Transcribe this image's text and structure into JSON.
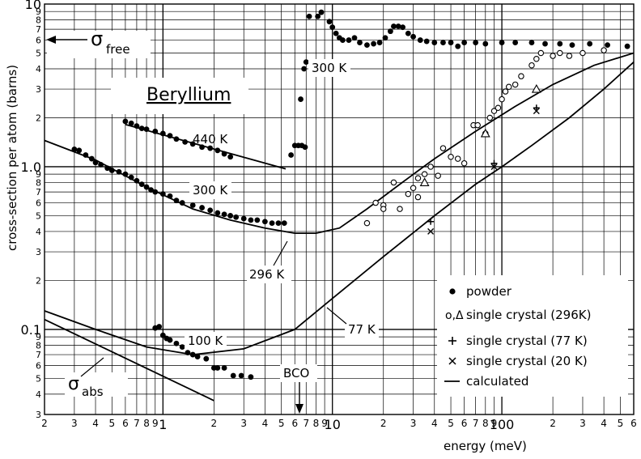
{
  "chart_data": {
    "type": "scatter",
    "xscale": "log",
    "yscale": "log",
    "xlim": [
      0.2,
      600
    ],
    "ylim": [
      0.03,
      10
    ],
    "xlabel": "energy (meV)",
    "ylabel": "cross-section per atom (barns)",
    "grid": true,
    "legend_position": "bottom-right",
    "x_tick_labels": [
      {
        "v": 0.2,
        "t": "2"
      },
      {
        "v": 0.3,
        "t": "3"
      },
      {
        "v": 0.4,
        "t": "4"
      },
      {
        "v": 0.5,
        "t": "5"
      },
      {
        "v": 0.6,
        "t": "6"
      },
      {
        "v": 0.7,
        "t": "7"
      },
      {
        "v": 0.8,
        "t": "8"
      },
      {
        "v": 0.9,
        "t": "9"
      },
      {
        "v": 1,
        "t": "1"
      },
      {
        "v": 2,
        "t": "2"
      },
      {
        "v": 3,
        "t": "3"
      },
      {
        "v": 4,
        "t": "4"
      },
      {
        "v": 5,
        "t": "5"
      },
      {
        "v": 6,
        "t": "6"
      },
      {
        "v": 7,
        "t": "7"
      },
      {
        "v": 8,
        "t": "8"
      },
      {
        "v": 9,
        "t": "9"
      },
      {
        "v": 10,
        "t": "10"
      },
      {
        "v": 20,
        "t": "2"
      },
      {
        "v": 30,
        "t": "3"
      },
      {
        "v": 40,
        "t": "4"
      },
      {
        "v": 50,
        "t": "5"
      },
      {
        "v": 60,
        "t": "6"
      },
      {
        "v": 70,
        "t": "7"
      },
      {
        "v": 80,
        "t": "8"
      },
      {
        "v": 90,
        "t": "9"
      },
      {
        "v": 100,
        "t": "100"
      },
      {
        "v": 200,
        "t": "2"
      },
      {
        "v": 300,
        "t": "3"
      },
      {
        "v": 400,
        "t": "4"
      },
      {
        "v": 500,
        "t": "5"
      },
      {
        "v": 600,
        "t": "6"
      }
    ],
    "y_tick_labels": [
      {
        "v": 10,
        "t": "10"
      },
      {
        "v": 9,
        "t": "9"
      },
      {
        "v": 8,
        "t": "8"
      },
      {
        "v": 7,
        "t": "7"
      },
      {
        "v": 6,
        "t": "6"
      },
      {
        "v": 5,
        "t": "5"
      },
      {
        "v": 4,
        "t": "4"
      },
      {
        "v": 3,
        "t": "3"
      },
      {
        "v": 2,
        "t": "2"
      },
      {
        "v": 1,
        "t": "1.0"
      },
      {
        "v": 0.9,
        "t": "9"
      },
      {
        "v": 0.8,
        "t": "8"
      },
      {
        "v": 0.7,
        "t": "7"
      },
      {
        "v": 0.6,
        "t": "6"
      },
      {
        "v": 0.5,
        "t": "5"
      },
      {
        "v": 0.4,
        "t": "4"
      },
      {
        "v": 0.3,
        "t": "3"
      },
      {
        "v": 0.2,
        "t": "2"
      },
      {
        "v": 0.1,
        "t": "0.1"
      },
      {
        "v": 0.09,
        "t": "9"
      },
      {
        "v": 0.08,
        "t": "8"
      },
      {
        "v": 0.07,
        "t": "7"
      },
      {
        "v": 0.06,
        "t": "6"
      },
      {
        "v": 0.05,
        "t": "5"
      },
      {
        "v": 0.04,
        "t": "4"
      },
      {
        "v": 0.03,
        "t": "3"
      }
    ],
    "series": [
      {
        "name": "powder",
        "marker": "filled-circle",
        "points": [
          [
            0.3,
            1.28
          ],
          [
            0.32,
            1.26
          ],
          [
            0.35,
            1.18
          ],
          [
            0.38,
            1.12
          ],
          [
            0.4,
            1.06
          ],
          [
            0.43,
            1.03
          ],
          [
            0.47,
            0.98
          ],
          [
            0.5,
            0.95
          ],
          [
            0.55,
            0.93
          ],
          [
            0.6,
            0.9
          ],
          [
            0.65,
            0.86
          ],
          [
            0.7,
            0.82
          ],
          [
            0.75,
            0.78
          ],
          [
            0.8,
            0.75
          ],
          [
            0.85,
            0.72
          ],
          [
            0.9,
            0.7
          ],
          [
            1.0,
            0.68
          ],
          [
            1.1,
            0.66
          ],
          [
            1.2,
            0.62
          ],
          [
            1.3,
            0.6
          ],
          [
            1.5,
            0.58
          ],
          [
            1.7,
            0.56
          ],
          [
            1.9,
            0.54
          ],
          [
            2.1,
            0.52
          ],
          [
            2.3,
            0.51
          ],
          [
            2.5,
            0.5
          ],
          [
            2.7,
            0.49
          ],
          [
            3.0,
            0.48
          ],
          [
            3.3,
            0.47
          ],
          [
            3.6,
            0.47
          ],
          [
            4.0,
            0.46
          ],
          [
            4.4,
            0.45
          ],
          [
            4.8,
            0.45
          ],
          [
            5.2,
            0.45
          ],
          [
            0.6,
            1.9
          ],
          [
            0.65,
            1.85
          ],
          [
            0.7,
            1.78
          ],
          [
            0.75,
            1.72
          ],
          [
            0.8,
            1.7
          ],
          [
            0.9,
            1.65
          ],
          [
            1.0,
            1.6
          ],
          [
            1.1,
            1.55
          ],
          [
            1.2,
            1.48
          ],
          [
            1.35,
            1.42
          ],
          [
            1.5,
            1.38
          ],
          [
            1.7,
            1.32
          ],
          [
            1.9,
            1.3
          ],
          [
            2.1,
            1.26
          ],
          [
            2.3,
            1.2
          ],
          [
            2.5,
            1.15
          ],
          [
            0.9,
            0.102
          ],
          [
            0.95,
            0.104
          ],
          [
            1.0,
            0.092
          ],
          [
            1.05,
            0.088
          ],
          [
            1.1,
            0.086
          ],
          [
            1.2,
            0.082
          ],
          [
            1.3,
            0.078
          ],
          [
            1.4,
            0.072
          ],
          [
            1.5,
            0.07
          ],
          [
            1.6,
            0.068
          ],
          [
            1.8,
            0.066
          ],
          [
            2.0,
            0.058
          ],
          [
            2.1,
            0.058
          ],
          [
            2.3,
            0.058
          ],
          [
            2.6,
            0.052
          ],
          [
            2.9,
            0.052
          ],
          [
            3.3,
            0.051
          ],
          [
            5.7,
            1.18
          ],
          [
            6.0,
            1.35
          ],
          [
            6.3,
            1.35
          ],
          [
            6.6,
            1.35
          ],
          [
            6.9,
            1.32
          ],
          [
            6.5,
            2.6
          ],
          [
            6.8,
            4.0
          ],
          [
            7.0,
            4.4
          ],
          [
            7.3,
            8.4
          ],
          [
            8.2,
            8.4
          ],
          [
            8.6,
            8.9
          ],
          [
            9.6,
            7.8
          ],
          [
            10.0,
            7.2
          ],
          [
            10.5,
            6.6
          ],
          [
            11.0,
            6.2
          ],
          [
            11.5,
            6.0
          ],
          [
            12.5,
            6.0
          ],
          [
            13.5,
            6.2
          ],
          [
            14.5,
            5.8
          ],
          [
            16,
            5.6
          ],
          [
            17.5,
            5.7
          ],
          [
            19,
            5.8
          ],
          [
            20.5,
            6.2
          ],
          [
            22,
            6.8
          ],
          [
            23,
            7.3
          ],
          [
            24.5,
            7.3
          ],
          [
            26,
            7.2
          ],
          [
            28,
            6.6
          ],
          [
            30,
            6.3
          ],
          [
            33,
            6.0
          ],
          [
            36,
            5.9
          ],
          [
            40,
            5.8
          ],
          [
            45,
            5.8
          ],
          [
            50,
            5.8
          ],
          [
            55,
            5.5
          ],
          [
            60,
            5.8
          ],
          [
            70,
            5.8
          ],
          [
            80,
            5.7
          ],
          [
            100,
            5.8
          ],
          [
            120,
            5.8
          ],
          [
            150,
            5.8
          ],
          [
            180,
            5.7
          ],
          [
            220,
            5.7
          ],
          [
            260,
            5.6
          ],
          [
            330,
            5.7
          ],
          [
            420,
            5.6
          ],
          [
            550,
            5.5
          ]
        ]
      },
      {
        "name": "single crystal (296 K)",
        "marker": "open-circle",
        "points": [
          [
            16,
            0.45
          ],
          [
            18,
            0.6
          ],
          [
            20,
            0.58
          ],
          [
            20,
            0.55
          ],
          [
            23,
            0.8
          ],
          [
            25,
            0.55
          ],
          [
            28,
            0.68
          ],
          [
            30,
            0.74
          ],
          [
            32,
            0.65
          ],
          [
            32,
            0.85
          ],
          [
            35,
            0.9
          ],
          [
            38,
            1.0
          ],
          [
            42,
            0.88
          ],
          [
            45,
            1.3
          ],
          [
            50,
            1.15
          ],
          [
            55,
            1.12
          ],
          [
            60,
            1.05
          ],
          [
            68,
            1.8
          ],
          [
            72,
            1.8
          ],
          [
            80,
            1.6
          ],
          [
            85,
            2.0
          ],
          [
            90,
            2.2
          ],
          [
            95,
            2.3
          ],
          [
            100,
            2.6
          ],
          [
            105,
            2.9
          ],
          [
            110,
            3.1
          ],
          [
            120,
            3.2
          ],
          [
            130,
            3.6
          ],
          [
            150,
            4.2
          ],
          [
            160,
            4.6
          ],
          [
            170,
            5.0
          ],
          [
            200,
            4.8
          ],
          [
            220,
            5.0
          ],
          [
            250,
            4.8
          ],
          [
            300,
            5.0
          ],
          [
            400,
            5.2
          ]
        ]
      },
      {
        "name": "single crystal (296 K) triangles",
        "marker": "open-triangle",
        "points": [
          [
            35,
            0.8
          ],
          [
            80,
            1.6
          ],
          [
            160,
            3.0
          ]
        ]
      },
      {
        "name": "single crystal (77 K)",
        "marker": "plus",
        "points": [
          [
            38,
            0.46
          ],
          [
            90,
            1.05
          ],
          [
            160,
            2.3
          ]
        ]
      },
      {
        "name": "single crystal (20 K)",
        "marker": "cross",
        "points": [
          [
            38,
            0.4
          ],
          [
            90,
            1.0
          ],
          [
            160,
            2.2
          ]
        ]
      }
    ],
    "curves": [
      {
        "name": "calculated 296 K",
        "points": [
          [
            0.2,
            1.45
          ],
          [
            0.4,
            1.1
          ],
          [
            0.8,
            0.75
          ],
          [
            1.5,
            0.55
          ],
          [
            2.5,
            0.47
          ],
          [
            4,
            0.42
          ],
          [
            6,
            0.39
          ],
          [
            8,
            0.39
          ],
          [
            11,
            0.42
          ],
          [
            16,
            0.55
          ],
          [
            25,
            0.78
          ],
          [
            40,
            1.12
          ],
          [
            70,
            1.65
          ],
          [
            120,
            2.35
          ],
          [
            200,
            3.2
          ],
          [
            350,
            4.2
          ],
          [
            600,
            5.0
          ]
        ]
      },
      {
        "name": "calculated 77 K",
        "points": [
          [
            0.2,
            0.13
          ],
          [
            0.4,
            0.1
          ],
          [
            0.8,
            0.078
          ],
          [
            1.5,
            0.07
          ],
          [
            3,
            0.076
          ],
          [
            6,
            0.1
          ],
          [
            10,
            0.155
          ],
          [
            20,
            0.28
          ],
          [
            40,
            0.5
          ],
          [
            70,
            0.78
          ],
          [
            100,
            1.0
          ],
          [
            150,
            1.35
          ],
          [
            250,
            2.0
          ],
          [
            400,
            3.0
          ],
          [
            600,
            4.4
          ]
        ]
      },
      {
        "name": "calculated 440 K",
        "points": [
          [
            0.6,
            1.82
          ],
          [
            5.3,
            0.97
          ]
        ]
      },
      {
        "name": "sigma abs",
        "points": [
          [
            0.2,
            0.115
          ],
          [
            2.0,
            0.0365
          ]
        ]
      }
    ],
    "annotations": [
      {
        "text": "Beryllium",
        "x": 1.7,
        "y": 3.1
      },
      {
        "text": "440 K",
        "x": 3.05,
        "y": 1.45
      },
      {
        "text": "300 K",
        "x": 3.0,
        "y": 0.78
      },
      {
        "text": "300 K",
        "x": 18.0,
        "y": 4.0
      },
      {
        "text": "296 K",
        "x": 4.5,
        "y": 0.26
      },
      {
        "text": "77 K",
        "x": 40,
        "y": 0.13
      },
      {
        "text": "100 K",
        "x": 1.75,
        "y": 0.1
      },
      {
        "text": "BCO",
        "x": 6.6,
        "y": 0.057
      }
    ],
    "sigma_free": {
      "main": "σ",
      "sub": "free"
    },
    "sigma_abs": {
      "main": "σ",
      "sub": "abs"
    },
    "legend": [
      {
        "marker": "filled-circle",
        "label": "powder"
      },
      {
        "marker": "open-circle-triangle",
        "symbol": "o,Δ",
        "label": "single crystal (296K)"
      },
      {
        "marker": "plus",
        "label": "single crystal (77 K)"
      },
      {
        "marker": "cross",
        "label": "single crystal (20 K)"
      },
      {
        "marker": "line",
        "label": "calculated"
      }
    ]
  }
}
